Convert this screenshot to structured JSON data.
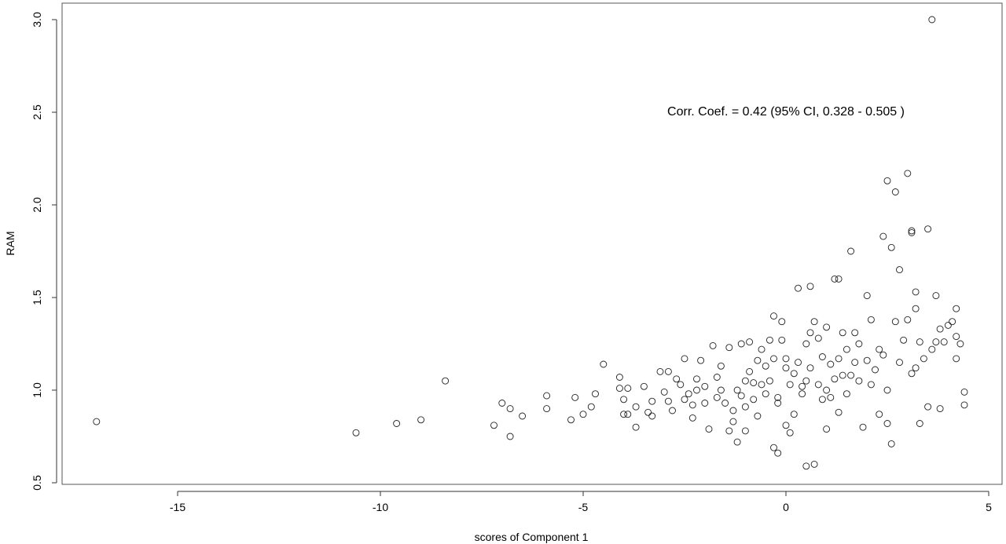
{
  "chart_data": {
    "type": "scatter",
    "title": "",
    "xlabel": "scores of Component 1",
    "ylabel": "RAM",
    "xlim": [
      -18,
      5.2
    ],
    "ylim": [
      0.45,
      3.1
    ],
    "grid": false,
    "x_ticks": [
      -15,
      -10,
      -5,
      0,
      5
    ],
    "x_tick_labels": [
      "-15",
      "-10",
      "-5",
      "0",
      "5"
    ],
    "y_ticks": [
      0.5,
      1.0,
      1.5,
      2.0,
      2.5,
      3.0
    ],
    "y_tick_labels": [
      "0.5",
      "1.0",
      "1.5",
      "2.0",
      "2.5",
      "3.0"
    ],
    "annotation": "Corr. Coef. = 0.42  (95% CI,  0.328 - 0.505 )",
    "marker": "open-circle",
    "marker_color": "#222222",
    "points": [
      [
        -17.0,
        0.83
      ],
      [
        -10.6,
        0.77
      ],
      [
        -9.6,
        0.82
      ],
      [
        -9.0,
        0.84
      ],
      [
        -8.4,
        1.05
      ],
      [
        -7.2,
        0.81
      ],
      [
        -7.0,
        0.93
      ],
      [
        -6.8,
        0.9
      ],
      [
        -6.8,
        0.75
      ],
      [
        -6.5,
        0.86
      ],
      [
        -5.9,
        0.97
      ],
      [
        -5.9,
        0.9
      ],
      [
        -5.3,
        0.84
      ],
      [
        -5.2,
        0.96
      ],
      [
        -5.0,
        0.87
      ],
      [
        -4.8,
        0.91
      ],
      [
        -4.7,
        0.98
      ],
      [
        -4.5,
        1.14
      ],
      [
        -4.1,
        1.07
      ],
      [
        -4.1,
        1.01
      ],
      [
        -4.0,
        0.95
      ],
      [
        -4.0,
        0.87
      ],
      [
        -3.9,
        1.01
      ],
      [
        -3.9,
        0.87
      ],
      [
        -3.7,
        0.91
      ],
      [
        -3.7,
        0.8
      ],
      [
        -3.5,
        1.02
      ],
      [
        -3.4,
        0.88
      ],
      [
        -3.3,
        0.94
      ],
      [
        -3.3,
        0.86
      ],
      [
        -3.1,
        1.1
      ],
      [
        -3.0,
        0.99
      ],
      [
        -2.9,
        1.1
      ],
      [
        -2.9,
        0.94
      ],
      [
        -2.8,
        0.89
      ],
      [
        -2.7,
        1.06
      ],
      [
        -2.6,
        1.03
      ],
      [
        -2.5,
        0.95
      ],
      [
        -2.5,
        1.17
      ],
      [
        -2.4,
        0.98
      ],
      [
        -2.3,
        0.92
      ],
      [
        -2.3,
        0.85
      ],
      [
        -2.2,
        1.06
      ],
      [
        -2.2,
        1.0
      ],
      [
        -2.1,
        1.16
      ],
      [
        -2.0,
        0.93
      ],
      [
        -2.0,
        1.02
      ],
      [
        -1.9,
        0.79
      ],
      [
        -1.8,
        1.24
      ],
      [
        -1.7,
        0.96
      ],
      [
        -1.7,
        1.07
      ],
      [
        -1.6,
        1.13
      ],
      [
        -1.6,
        1.0
      ],
      [
        -1.5,
        0.93
      ],
      [
        -1.4,
        1.23
      ],
      [
        -1.4,
        0.78
      ],
      [
        -1.3,
        0.89
      ],
      [
        -1.3,
        0.83
      ],
      [
        -1.2,
        0.72
      ],
      [
        -1.2,
        1.0
      ],
      [
        -1.1,
        1.25
      ],
      [
        -1.1,
        0.97
      ],
      [
        -1.0,
        1.05
      ],
      [
        -1.0,
        0.91
      ],
      [
        -1.0,
        0.78
      ],
      [
        -0.9,
        1.26
      ],
      [
        -0.9,
        1.1
      ],
      [
        -0.8,
        1.04
      ],
      [
        -0.8,
        0.95
      ],
      [
        -0.7,
        1.16
      ],
      [
        -0.7,
        0.86
      ],
      [
        -0.6,
        1.22
      ],
      [
        -0.6,
        1.03
      ],
      [
        -0.5,
        1.13
      ],
      [
        -0.5,
        0.98
      ],
      [
        -0.4,
        1.27
      ],
      [
        -0.4,
        1.05
      ],
      [
        -0.3,
        1.4
      ],
      [
        -0.3,
        1.17
      ],
      [
        -0.3,
        0.69
      ],
      [
        -0.2,
        0.93
      ],
      [
        -0.2,
        0.66
      ],
      [
        -0.2,
        0.96
      ],
      [
        -0.1,
        1.37
      ],
      [
        -0.1,
        1.27
      ],
      [
        0.0,
        1.17
      ],
      [
        0.0,
        1.12
      ],
      [
        0.0,
        0.81
      ],
      [
        0.1,
        0.77
      ],
      [
        0.1,
        1.03
      ],
      [
        0.2,
        1.09
      ],
      [
        0.2,
        0.87
      ],
      [
        0.3,
        1.55
      ],
      [
        0.3,
        1.15
      ],
      [
        0.4,
        1.02
      ],
      [
        0.4,
        0.98
      ],
      [
        0.5,
        1.25
      ],
      [
        0.5,
        1.05
      ],
      [
        0.5,
        0.59
      ],
      [
        0.6,
        1.56
      ],
      [
        0.6,
        1.31
      ],
      [
        0.6,
        1.12
      ],
      [
        0.7,
        1.37
      ],
      [
        0.7,
        0.6
      ],
      [
        0.8,
        1.28
      ],
      [
        0.8,
        1.03
      ],
      [
        0.9,
        1.18
      ],
      [
        0.9,
        0.95
      ],
      [
        1.0,
        1.34
      ],
      [
        1.0,
        1.0
      ],
      [
        1.0,
        0.79
      ],
      [
        1.1,
        1.14
      ],
      [
        1.1,
        0.96
      ],
      [
        1.2,
        1.6
      ],
      [
        1.2,
        1.06
      ],
      [
        1.3,
        1.6
      ],
      [
        1.3,
        1.17
      ],
      [
        1.3,
        0.88
      ],
      [
        1.4,
        1.31
      ],
      [
        1.4,
        1.08
      ],
      [
        1.5,
        1.22
      ],
      [
        1.5,
        0.98
      ],
      [
        1.6,
        1.75
      ],
      [
        1.6,
        1.08
      ],
      [
        1.7,
        1.31
      ],
      [
        1.7,
        1.15
      ],
      [
        1.8,
        1.25
      ],
      [
        1.8,
        1.05
      ],
      [
        1.9,
        0.8
      ],
      [
        2.0,
        1.51
      ],
      [
        2.0,
        1.16
      ],
      [
        2.1,
        1.38
      ],
      [
        2.1,
        1.03
      ],
      [
        2.2,
        1.11
      ],
      [
        2.3,
        1.22
      ],
      [
        2.3,
        0.87
      ],
      [
        2.4,
        1.83
      ],
      [
        2.4,
        1.19
      ],
      [
        2.5,
        2.13
      ],
      [
        2.5,
        1.0
      ],
      [
        2.5,
        0.82
      ],
      [
        2.6,
        1.77
      ],
      [
        2.6,
        0.71
      ],
      [
        2.7,
        2.07
      ],
      [
        2.7,
        1.37
      ],
      [
        2.8,
        1.65
      ],
      [
        2.8,
        1.15
      ],
      [
        2.9,
        1.27
      ],
      [
        3.0,
        2.17
      ],
      [
        3.0,
        1.38
      ],
      [
        3.1,
        1.86
      ],
      [
        3.1,
        1.85
      ],
      [
        3.1,
        1.09
      ],
      [
        3.2,
        1.53
      ],
      [
        3.2,
        1.44
      ],
      [
        3.2,
        1.12
      ],
      [
        3.3,
        0.82
      ],
      [
        3.3,
        1.26
      ],
      [
        3.4,
        1.17
      ],
      [
        3.5,
        1.87
      ],
      [
        3.5,
        0.91
      ],
      [
        3.6,
        3.0
      ],
      [
        3.6,
        1.22
      ],
      [
        3.7,
        1.51
      ],
      [
        3.7,
        1.26
      ],
      [
        3.8,
        1.33
      ],
      [
        3.8,
        0.9
      ],
      [
        3.9,
        1.26
      ],
      [
        4.0,
        1.35
      ],
      [
        4.1,
        1.37
      ],
      [
        4.2,
        1.44
      ],
      [
        4.2,
        1.29
      ],
      [
        4.2,
        1.17
      ],
      [
        4.3,
        1.25
      ],
      [
        4.4,
        0.92
      ],
      [
        4.4,
        0.99
      ]
    ]
  }
}
